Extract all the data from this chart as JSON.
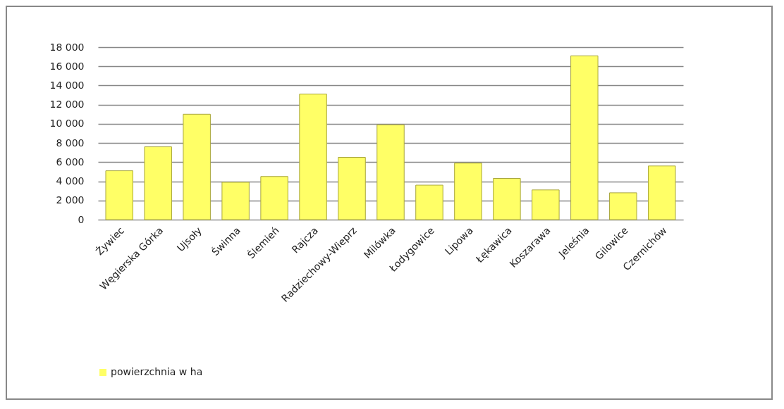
{
  "chart_data": {
    "type": "bar",
    "categories": [
      "Żywiec",
      "Węgierska Górka",
      "Ujsoły",
      "Świnna",
      "Ślemień",
      "Rajcza",
      "Radziechowy-Wieprz",
      "Milówka",
      "Łodygowice",
      "Lipowa",
      "Łękawica",
      "Koszarawa",
      "Jeleśnia",
      "Gilowice",
      "Czernichów"
    ],
    "series": [
      {
        "name": "powierzchnia w ha",
        "color": "#ffff66",
        "values": [
          5100,
          7600,
          11000,
          3900,
          4500,
          13100,
          6500,
          9900,
          3600,
          5900,
          4300,
          3100,
          17100,
          2800,
          5600
        ]
      }
    ],
    "ylim": [
      0,
      18000
    ],
    "yticks": [
      {
        "value": 0,
        "label": "0"
      },
      {
        "value": 2000,
        "label": "2 000"
      },
      {
        "value": 4000,
        "label": "4 000"
      },
      {
        "value": 6000,
        "label": "6 000"
      },
      {
        "value": 8000,
        "label": "8 000"
      },
      {
        "value": 10000,
        "label": "10 000"
      },
      {
        "value": 12000,
        "label": "12 000"
      },
      {
        "value": 14000,
        "label": "14 000"
      },
      {
        "value": 16000,
        "label": "16 000"
      },
      {
        "value": 18000,
        "label": "18 000"
      }
    ],
    "grid": "y",
    "legend": "bottom"
  }
}
